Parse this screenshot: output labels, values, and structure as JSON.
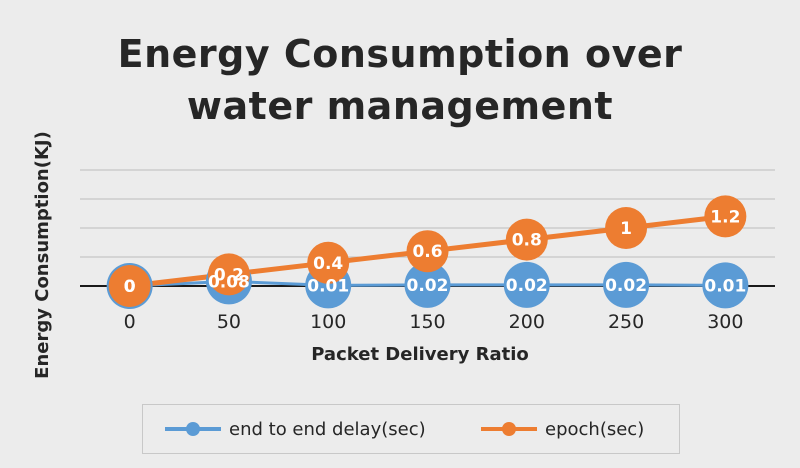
{
  "chart_data": {
    "type": "line",
    "title": "Energy Consumption over water management",
    "title_lines": [
      "Energy Consumption over",
      "water management"
    ],
    "xlabel": "Packet Delivery Ratio",
    "ylabel": "Energy Consumption(KJ)",
    "categories": [
      "0",
      "50",
      "100",
      "150",
      "200",
      "250",
      "300"
    ],
    "ylim": [
      0,
      2
    ],
    "grid": true,
    "legend_position": "bottom",
    "series": [
      {
        "name": "end to end delay(sec)",
        "color": "#5b9bd5",
        "values": [
          0,
          0.08,
          0.01,
          0.02,
          0.02,
          0.02,
          0.01
        ],
        "labels": [
          "0",
          "0.08",
          "0.01",
          "0.02",
          "0.02",
          "0.02",
          "0.01"
        ]
      },
      {
        "name": "epoch(sec)",
        "color": "#ed7d31",
        "values": [
          0,
          0.2,
          0.4,
          0.6,
          0.8,
          1,
          1.2
        ],
        "labels": [
          "0",
          "0.2",
          "0.4",
          "0.6",
          "0.8",
          "1",
          "1.2"
        ]
      }
    ]
  }
}
